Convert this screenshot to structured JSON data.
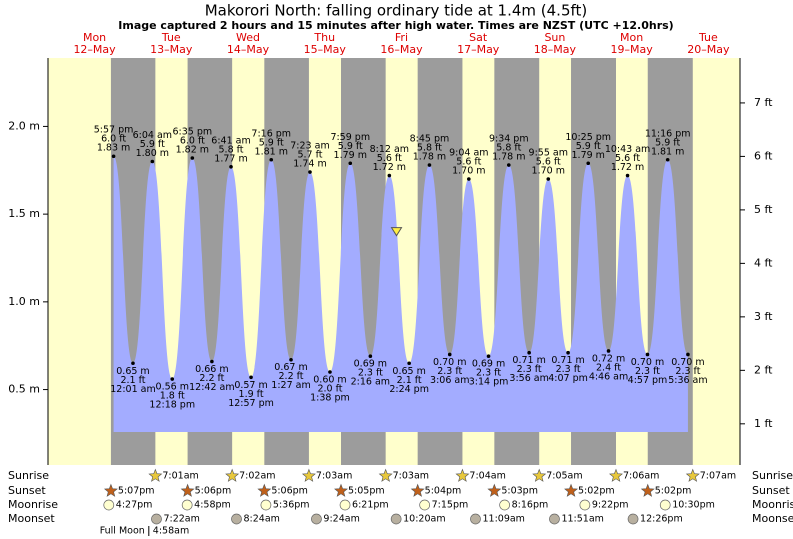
{
  "chart_data": {
    "type": "tide",
    "title": "Makorori North: falling  ordinary tide at 1.4m (4.5ft)",
    "subtitle": "Image captured 2 hours and 15 minutes after high water. Times are NZST (UTC +12.0hrs)",
    "days": [
      {
        "day": "Mon",
        "date": "12–May"
      },
      {
        "day": "Tue",
        "date": "13–May"
      },
      {
        "day": "Wed",
        "date": "14–May"
      },
      {
        "day": "Thu",
        "date": "15–May"
      },
      {
        "day": "Fri",
        "date": "16–May"
      },
      {
        "day": "Sat",
        "date": "17–May"
      },
      {
        "day": "Sun",
        "date": "18–May"
      },
      {
        "day": "Mon",
        "date": "19–May"
      },
      {
        "day": "Tue",
        "date": "20–May"
      }
    ],
    "ylim": [
      0.07,
      2.39
    ],
    "yticks": [
      {
        "value": 0.5,
        "label": "0.5 m"
      },
      {
        "value": 1.0,
        "label": "1.0 m"
      },
      {
        "value": 1.5,
        "label": "1.5 m"
      },
      {
        "value": 2.0,
        "label": "2.0 m"
      }
    ],
    "y2lim": [
      0.23,
      7.84
    ],
    "y2ticks": [
      {
        "value": 1,
        "label": "1 ft"
      },
      {
        "value": 2,
        "label": "2 ft"
      },
      {
        "value": 3,
        "label": "3 ft"
      },
      {
        "value": 4,
        "label": "4 ft"
      },
      {
        "value": 5,
        "label": "5 ft"
      },
      {
        "value": 6,
        "label": "6 ft"
      },
      {
        "value": 7,
        "label": "7 ft"
      }
    ],
    "extremes": [
      {
        "time": "5:57 pm",
        "height_m": 1.83,
        "label_m": "1.83 m",
        "height_ft": 6.0,
        "label_ft": "6.0 ft"
      },
      {
        "time": "12:01 am",
        "height_m": 0.65,
        "label_m": "0.65 m",
        "height_ft": 2.1,
        "label_ft": "2.1 ft"
      },
      {
        "time": "6:04 am",
        "height_m": 1.8,
        "label_m": "1.80 m",
        "height_ft": 5.9,
        "label_ft": "5.9 ft"
      },
      {
        "time": "12:18 pm",
        "height_m": 0.56,
        "label_m": "0.56 m",
        "height_ft": 1.8,
        "label_ft": "1.8 ft"
      },
      {
        "time": "6:35 pm",
        "height_m": 1.82,
        "label_m": "1.82 m",
        "height_ft": 6.0,
        "label_ft": "6.0 ft"
      },
      {
        "time": "12:42 am",
        "height_m": 0.66,
        "label_m": "0.66 m",
        "height_ft": 2.2,
        "label_ft": "2.2 ft"
      },
      {
        "time": "6:41 am",
        "height_m": 1.77,
        "label_m": "1.77 m",
        "height_ft": 5.8,
        "label_ft": "5.8 ft"
      },
      {
        "time": "12:57 pm",
        "height_m": 0.57,
        "label_m": "0.57 m",
        "height_ft": 1.9,
        "label_ft": "1.9 ft"
      },
      {
        "time": "7:16 pm",
        "height_m": 1.81,
        "label_m": "1.81 m",
        "height_ft": 5.9,
        "label_ft": "5.9 ft"
      },
      {
        "time": "1:27 am",
        "height_m": 0.67,
        "label_m": "0.67 m",
        "height_ft": 2.2,
        "label_ft": "2.2 ft"
      },
      {
        "time": "7:23 am",
        "height_m": 1.74,
        "label_m": "1.74 m",
        "height_ft": 5.7,
        "label_ft": "5.7 ft"
      },
      {
        "time": "1:38 pm",
        "height_m": 0.6,
        "label_m": "0.60 m",
        "height_ft": 2.0,
        "label_ft": "2.0 ft"
      },
      {
        "time": "7:59 pm",
        "height_m": 1.79,
        "label_m": "1.79 m",
        "height_ft": 5.9,
        "label_ft": "5.9 ft"
      },
      {
        "time": "2:16 am",
        "height_m": 0.69,
        "label_m": "0.69 m",
        "height_ft": 2.3,
        "label_ft": "2.3 ft"
      },
      {
        "time": "8:12 am",
        "height_m": 1.72,
        "label_m": "1.72 m",
        "height_ft": 5.6,
        "label_ft": "5.6 ft"
      },
      {
        "time": "2:24 pm",
        "height_m": 0.65,
        "label_m": "0.65 m",
        "height_ft": 2.1,
        "label_ft": "2.1 ft"
      },
      {
        "time": "8:45 pm",
        "height_m": 1.78,
        "label_m": "1.78 m",
        "height_ft": 5.8,
        "label_ft": "5.8 ft"
      },
      {
        "time": "3:06 am",
        "height_m": 0.7,
        "label_m": "0.70 m",
        "height_ft": 2.3,
        "label_ft": "2.3 ft"
      },
      {
        "time": "9:04 am",
        "height_m": 1.7,
        "label_m": "1.70 m",
        "height_ft": 5.6,
        "label_ft": "5.6 ft"
      },
      {
        "time": "3:14 pm",
        "height_m": 0.69,
        "label_m": "0.69 m",
        "height_ft": 2.3,
        "label_ft": "2.3 ft"
      },
      {
        "time": "9:34 pm",
        "height_m": 1.78,
        "label_m": "1.78 m",
        "height_ft": 5.8,
        "label_ft": "5.8 ft"
      },
      {
        "time": "3:56 am",
        "height_m": 0.71,
        "label_m": "0.71 m",
        "height_ft": 2.3,
        "label_ft": "2.3 ft"
      },
      {
        "time": "9:55 am",
        "height_m": 1.7,
        "label_m": "1.70 m",
        "height_ft": 5.6,
        "label_ft": "5.6 ft"
      },
      {
        "time": "4:07 pm",
        "height_m": 0.71,
        "label_m": "0.71 m",
        "height_ft": 2.3,
        "label_ft": "2.3 ft"
      },
      {
        "time": "10:25 pm",
        "height_m": 1.79,
        "label_m": "1.79 m",
        "height_ft": 5.9,
        "label_ft": "5.9 ft"
      },
      {
        "time": "4:46 am",
        "height_m": 0.72,
        "label_m": "0.72 m",
        "height_ft": 2.4,
        "label_ft": "2.4 ft"
      },
      {
        "time": "10:43 am",
        "height_m": 1.72,
        "label_m": "1.72 m",
        "height_ft": 5.6,
        "label_ft": "5.6 ft"
      },
      {
        "time": "4:57 pm",
        "height_m": 0.7,
        "label_m": "0.70 m",
        "height_ft": 2.3,
        "label_ft": "2.3 ft"
      },
      {
        "time": "11:16 pm",
        "height_m": 1.81,
        "label_m": "1.81 m",
        "height_ft": 5.9,
        "label_ft": "5.9 ft"
      },
      {
        "time": "5:36 am",
        "height_m": 0.7,
        "label_m": "0.70 m",
        "height_ft": 2.3,
        "label_ft": "2.3 ft"
      }
    ],
    "current": {
      "height_m": 1.4,
      "hours_after_high": 2.25
    },
    "rows": [
      {
        "name": "Sunrise",
        "icon": "sunrise",
        "times": [
          null,
          "7:01am",
          "7:02am",
          "7:03am",
          "7:03am",
          "7:04am",
          "7:05am",
          "7:06am",
          "7:07am"
        ]
      },
      {
        "name": "Sunset",
        "icon": "sunset",
        "times": [
          "5:07pm",
          "5:06pm",
          "5:06pm",
          "5:05pm",
          "5:04pm",
          "5:03pm",
          "5:02pm",
          "5:02pm",
          null
        ]
      },
      {
        "name": "Moonrise",
        "icon": "moonrise",
        "times": [
          "4:27pm",
          "4:58pm",
          "5:36pm",
          "6:21pm",
          "7:15pm",
          "8:16pm",
          "9:22pm",
          "10:30pm",
          null
        ]
      },
      {
        "name": "Moonset",
        "icon": "moonset",
        "times": [
          null,
          "7:22am",
          "8:24am",
          "9:24am",
          "10:20am",
          "11:09am",
          "11:51am",
          "12:26pm",
          null
        ]
      }
    ],
    "moon_phase": {
      "label": "Full Moon",
      "time": "4:58am",
      "day_index": 1
    },
    "colors": {
      "day": "#ffffcc",
      "night": "#9c9c9c",
      "water": "#a3acff",
      "day_label": "#dd0000",
      "sunrise": "#e8c83c",
      "sunset": "#c0601a",
      "moonrise": "#ffffd0",
      "moonset": "#b8b0a0",
      "marker": "#ffee44"
    }
  }
}
